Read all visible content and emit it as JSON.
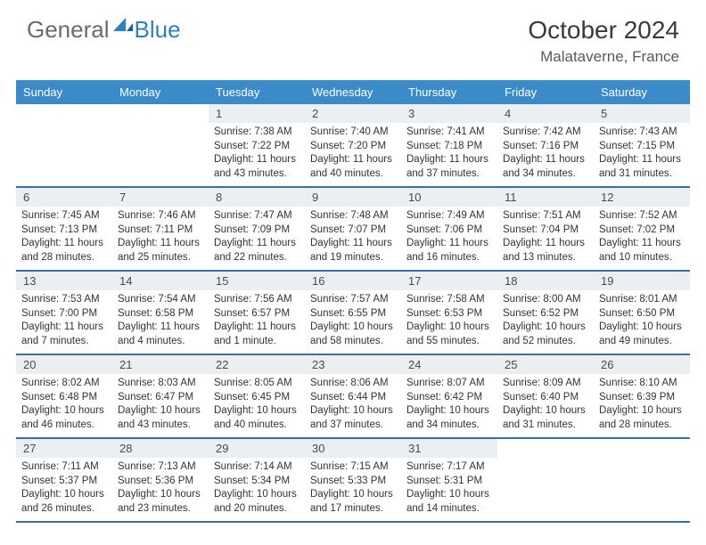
{
  "brand": {
    "part1": "General",
    "part2": "Blue"
  },
  "title": "October 2024",
  "location": "Malataverne, France",
  "colors": {
    "header_bg": "#3b8bc9",
    "row_divider": "#3b6fa0",
    "daynum_bg": "#eceff1",
    "logo_gray": "#6b6b6b",
    "logo_blue": "#2f7fc2",
    "text": "#333333"
  },
  "daysOfWeek": [
    "Sunday",
    "Monday",
    "Tuesday",
    "Wednesday",
    "Thursday",
    "Friday",
    "Saturday"
  ],
  "layout": {
    "columns": 7,
    "rows": 5,
    "leading_blanks": 2
  },
  "days": [
    {
      "n": 1,
      "sunrise": "7:38 AM",
      "sunset": "7:22 PM",
      "daylight": "11 hours and 43 minutes."
    },
    {
      "n": 2,
      "sunrise": "7:40 AM",
      "sunset": "7:20 PM",
      "daylight": "11 hours and 40 minutes."
    },
    {
      "n": 3,
      "sunrise": "7:41 AM",
      "sunset": "7:18 PM",
      "daylight": "11 hours and 37 minutes."
    },
    {
      "n": 4,
      "sunrise": "7:42 AM",
      "sunset": "7:16 PM",
      "daylight": "11 hours and 34 minutes."
    },
    {
      "n": 5,
      "sunrise": "7:43 AM",
      "sunset": "7:15 PM",
      "daylight": "11 hours and 31 minutes."
    },
    {
      "n": 6,
      "sunrise": "7:45 AM",
      "sunset": "7:13 PM",
      "daylight": "11 hours and 28 minutes."
    },
    {
      "n": 7,
      "sunrise": "7:46 AM",
      "sunset": "7:11 PM",
      "daylight": "11 hours and 25 minutes."
    },
    {
      "n": 8,
      "sunrise": "7:47 AM",
      "sunset": "7:09 PM",
      "daylight": "11 hours and 22 minutes."
    },
    {
      "n": 9,
      "sunrise": "7:48 AM",
      "sunset": "7:07 PM",
      "daylight": "11 hours and 19 minutes."
    },
    {
      "n": 10,
      "sunrise": "7:49 AM",
      "sunset": "7:06 PM",
      "daylight": "11 hours and 16 minutes."
    },
    {
      "n": 11,
      "sunrise": "7:51 AM",
      "sunset": "7:04 PM",
      "daylight": "11 hours and 13 minutes."
    },
    {
      "n": 12,
      "sunrise": "7:52 AM",
      "sunset": "7:02 PM",
      "daylight": "11 hours and 10 minutes."
    },
    {
      "n": 13,
      "sunrise": "7:53 AM",
      "sunset": "7:00 PM",
      "daylight": "11 hours and 7 minutes."
    },
    {
      "n": 14,
      "sunrise": "7:54 AM",
      "sunset": "6:58 PM",
      "daylight": "11 hours and 4 minutes."
    },
    {
      "n": 15,
      "sunrise": "7:56 AM",
      "sunset": "6:57 PM",
      "daylight": "11 hours and 1 minute."
    },
    {
      "n": 16,
      "sunrise": "7:57 AM",
      "sunset": "6:55 PM",
      "daylight": "10 hours and 58 minutes."
    },
    {
      "n": 17,
      "sunrise": "7:58 AM",
      "sunset": "6:53 PM",
      "daylight": "10 hours and 55 minutes."
    },
    {
      "n": 18,
      "sunrise": "8:00 AM",
      "sunset": "6:52 PM",
      "daylight": "10 hours and 52 minutes."
    },
    {
      "n": 19,
      "sunrise": "8:01 AM",
      "sunset": "6:50 PM",
      "daylight": "10 hours and 49 minutes."
    },
    {
      "n": 20,
      "sunrise": "8:02 AM",
      "sunset": "6:48 PM",
      "daylight": "10 hours and 46 minutes."
    },
    {
      "n": 21,
      "sunrise": "8:03 AM",
      "sunset": "6:47 PM",
      "daylight": "10 hours and 43 minutes."
    },
    {
      "n": 22,
      "sunrise": "8:05 AM",
      "sunset": "6:45 PM",
      "daylight": "10 hours and 40 minutes."
    },
    {
      "n": 23,
      "sunrise": "8:06 AM",
      "sunset": "6:44 PM",
      "daylight": "10 hours and 37 minutes."
    },
    {
      "n": 24,
      "sunrise": "8:07 AM",
      "sunset": "6:42 PM",
      "daylight": "10 hours and 34 minutes."
    },
    {
      "n": 25,
      "sunrise": "8:09 AM",
      "sunset": "6:40 PM",
      "daylight": "10 hours and 31 minutes."
    },
    {
      "n": 26,
      "sunrise": "8:10 AM",
      "sunset": "6:39 PM",
      "daylight": "10 hours and 28 minutes."
    },
    {
      "n": 27,
      "sunrise": "7:11 AM",
      "sunset": "5:37 PM",
      "daylight": "10 hours and 26 minutes."
    },
    {
      "n": 28,
      "sunrise": "7:13 AM",
      "sunset": "5:36 PM",
      "daylight": "10 hours and 23 minutes."
    },
    {
      "n": 29,
      "sunrise": "7:14 AM",
      "sunset": "5:34 PM",
      "daylight": "10 hours and 20 minutes."
    },
    {
      "n": 30,
      "sunrise": "7:15 AM",
      "sunset": "5:33 PM",
      "daylight": "10 hours and 17 minutes."
    },
    {
      "n": 31,
      "sunrise": "7:17 AM",
      "sunset": "5:31 PM",
      "daylight": "10 hours and 14 minutes."
    }
  ],
  "labels": {
    "sunrise": "Sunrise:",
    "sunset": "Sunset:",
    "daylight": "Daylight:"
  }
}
